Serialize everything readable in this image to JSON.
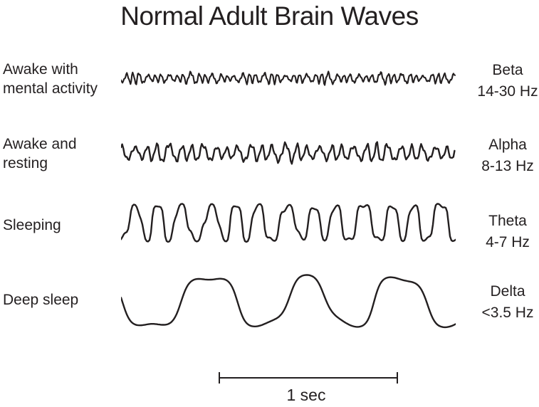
{
  "title": "Normal Adult Brain Waves",
  "ink_color": "#231f20",
  "background_color": "#ffffff",
  "rows": [
    {
      "condition": "Awake with mental activity",
      "wave": "Beta",
      "frequency": "14-30 Hz",
      "synth": {
        "cycles": 46,
        "amp": 8,
        "mod": 0.6,
        "warp": 1.1,
        "rough": 0.28,
        "clip": 0,
        "seed": 7,
        "stroke_width": 2.1
      }
    },
    {
      "condition": "Awake and resting",
      "wave": "Alpha",
      "frequency": "8-13 Hz",
      "synth": {
        "cycles": 29,
        "amp": 13,
        "mod": 0.45,
        "warp": 0.85,
        "rough": 0.3,
        "clip": 0,
        "seed": 13,
        "stroke_width": 2.4
      }
    },
    {
      "condition": "Sleeping",
      "wave": "Theta",
      "frequency": "4-7 Hz",
      "synth": {
        "cycles": 13,
        "amp": 26,
        "mod": 0.32,
        "warp": 0.7,
        "rough": 0.25,
        "clip": 1.6,
        "seed": 5,
        "stroke_width": 2.4
      }
    },
    {
      "condition": "Deep sleep",
      "wave": "Delta",
      "frequency": "<3.5 Hz",
      "synth": {
        "cycles": 3.3,
        "amp": 36,
        "mod": 0.15,
        "warp": 0.5,
        "rough": 0.2,
        "clip": 1.3,
        "seed": 9,
        "stroke_width": 2.4
      }
    }
  ],
  "scale_bar": {
    "label": "1 sec"
  }
}
